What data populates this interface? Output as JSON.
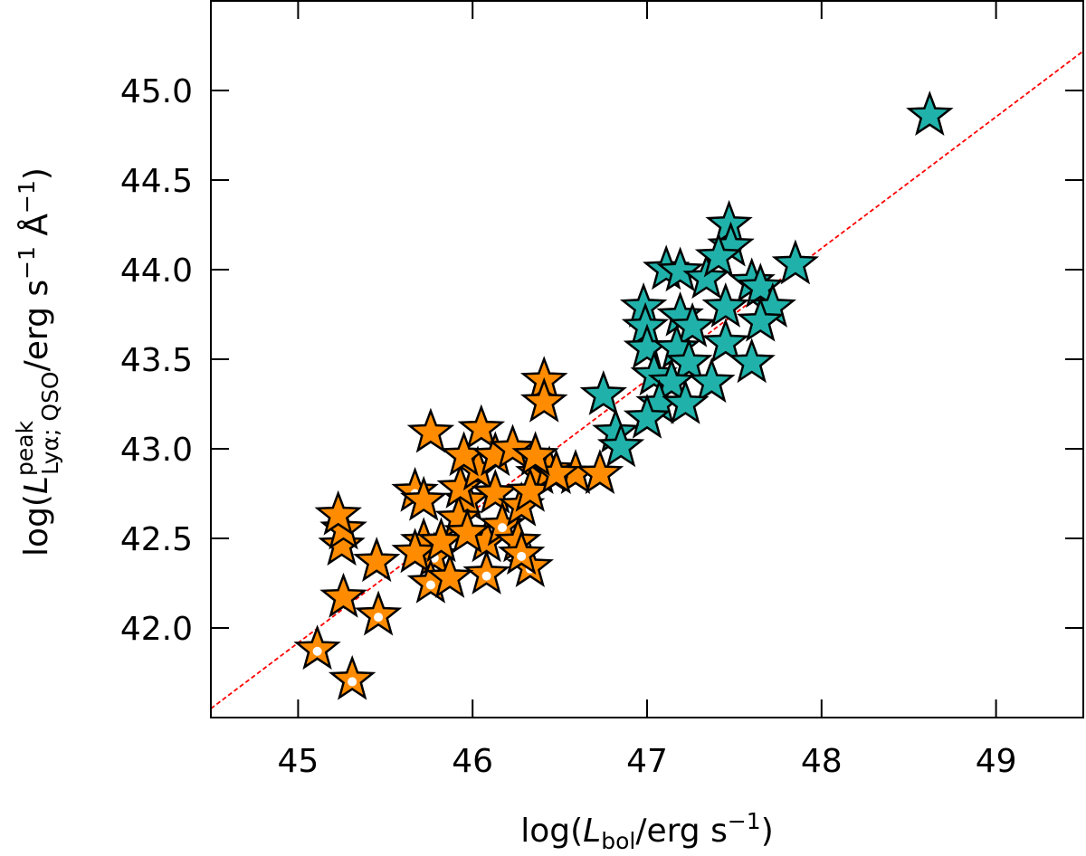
{
  "chart_data": {
    "type": "scatter",
    "xlabel": {
      "prefix": "log(",
      "var": "L",
      "sub": "bol",
      "suffix": "/erg s",
      "sup": "−1",
      "close": ")"
    },
    "ylabel": {
      "prefix": "log(",
      "var": "L",
      "sup_var": "peak",
      "sub": "Lyα; QSO",
      "mid": "/erg s",
      "sup1": "−1",
      "mid2": " Å",
      "sup2": "−1",
      "close": ")"
    },
    "xlim": [
      44.5,
      49.5
    ],
    "ylim": [
      41.5,
      45.5
    ],
    "xticks": [
      45,
      46,
      47,
      48,
      49
    ],
    "xtick_labels": [
      "45",
      "46",
      "47",
      "48",
      "49"
    ],
    "yticks": [
      42.0,
      42.5,
      43.0,
      43.5,
      44.0,
      44.5,
      45.0
    ],
    "ytick_labels": [
      "42.0",
      "42.5",
      "43.0",
      "43.5",
      "44.0",
      "44.5",
      "45.0"
    ],
    "grid": false,
    "marker": "star",
    "fit_line": {
      "color": "#ff0000",
      "style": "dashed",
      "points": [
        [
          44.5,
          41.55
        ],
        [
          49.5,
          45.22
        ]
      ]
    },
    "series": [
      {
        "color": "#ff8c00",
        "points": [
          [
            45.11,
            41.88,
            1
          ],
          [
            45.31,
            41.71,
            1
          ],
          [
            45.46,
            42.07,
            1
          ],
          [
            45.26,
            42.17,
            0
          ],
          [
            45.45,
            42.37,
            0
          ],
          [
            45.25,
            42.46,
            0
          ],
          [
            45.26,
            42.55,
            0
          ],
          [
            45.23,
            42.63,
            0
          ],
          [
            45.76,
            43.09,
            0
          ],
          [
            46.05,
            43.11,
            0
          ],
          [
            45.67,
            42.76,
            1
          ],
          [
            45.72,
            42.71,
            0
          ],
          [
            45.72,
            42.48,
            0
          ],
          [
            45.78,
            42.4,
            1
          ],
          [
            45.76,
            42.25,
            1
          ],
          [
            45.67,
            42.42,
            0
          ],
          [
            45.97,
            42.71,
            0
          ],
          [
            45.92,
            42.61,
            0
          ],
          [
            45.93,
            42.78,
            0
          ],
          [
            46.03,
            42.88,
            0
          ],
          [
            45.95,
            42.96,
            0
          ],
          [
            46.13,
            42.96,
            0
          ],
          [
            46.23,
            43.0,
            0
          ],
          [
            46.13,
            42.75,
            0
          ],
          [
            46.08,
            42.48,
            0
          ],
          [
            46.08,
            42.3,
            1
          ],
          [
            46.17,
            42.57,
            1
          ],
          [
            46.28,
            42.68,
            0
          ],
          [
            46.26,
            42.48,
            0
          ],
          [
            46.33,
            42.34,
            1
          ],
          [
            46.28,
            42.41,
            1
          ],
          [
            46.38,
            42.86,
            0
          ],
          [
            46.44,
            42.88,
            0
          ],
          [
            46.33,
            42.76,
            0
          ],
          [
            46.59,
            42.86,
            0
          ],
          [
            46.48,
            42.86,
            0
          ],
          [
            46.41,
            43.38,
            0
          ],
          [
            46.41,
            43.26,
            0
          ],
          [
            46.73,
            42.86,
            0
          ],
          [
            46.36,
            42.96,
            0
          ],
          [
            45.87,
            42.28,
            0
          ],
          [
            45.82,
            42.48,
            0
          ],
          [
            45.97,
            42.53,
            0
          ]
        ]
      },
      {
        "color": "#20b2aa",
        "points": [
          [
            47.47,
            44.25,
            0
          ],
          [
            47.48,
            44.13,
            0
          ],
          [
            47.85,
            44.03,
            0
          ],
          [
            47.11,
            44.0,
            0
          ],
          [
            47.19,
            43.99,
            0
          ],
          [
            47.34,
            43.95,
            0
          ],
          [
            47.41,
            44.07,
            0
          ],
          [
            47.6,
            43.93,
            0
          ],
          [
            47.65,
            43.9,
            0
          ],
          [
            47.72,
            43.79,
            0
          ],
          [
            46.98,
            43.79,
            0
          ],
          [
            46.99,
            43.68,
            0
          ],
          [
            47.19,
            43.74,
            0
          ],
          [
            47.45,
            43.79,
            0
          ],
          [
            47.26,
            43.68,
            0
          ],
          [
            47.65,
            43.71,
            0
          ],
          [
            47.0,
            43.56,
            0
          ],
          [
            47.17,
            43.56,
            0
          ],
          [
            47.45,
            43.59,
            0
          ],
          [
            47.24,
            43.48,
            0
          ],
          [
            47.6,
            43.48,
            0
          ],
          [
            47.04,
            43.41,
            0
          ],
          [
            47.37,
            43.37,
            0
          ],
          [
            47.14,
            43.37,
            0
          ],
          [
            47.07,
            43.25,
            0
          ],
          [
            47.22,
            43.25,
            0
          ],
          [
            47.0,
            43.17,
            0
          ],
          [
            46.75,
            43.3,
            0
          ],
          [
            46.82,
            43.09,
            0
          ],
          [
            46.85,
            43.01,
            0
          ],
          [
            48.62,
            44.86,
            0
          ]
        ]
      }
    ]
  }
}
